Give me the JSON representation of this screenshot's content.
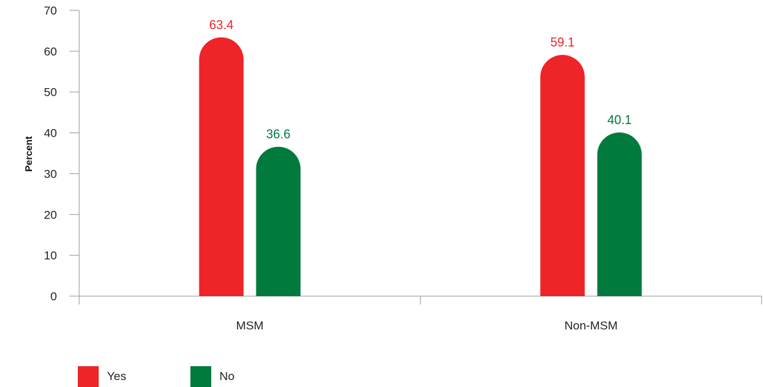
{
  "chart_data": {
    "type": "bar",
    "categories": [
      "MSM",
      "Non-MSM"
    ],
    "series": [
      {
        "name": "Yes",
        "values": [
          63.4,
          59.1
        ],
        "color": "#ee2428"
      },
      {
        "name": "No",
        "values": [
          36.6,
          40.1
        ],
        "color": "#017a3e"
      }
    ],
    "ylabel": "Percent",
    "ylim": [
      0,
      70
    ],
    "yticks": [
      0,
      10,
      20,
      30,
      40,
      50,
      60,
      70
    ],
    "grid": false,
    "legend_position": "bottom-left"
  }
}
